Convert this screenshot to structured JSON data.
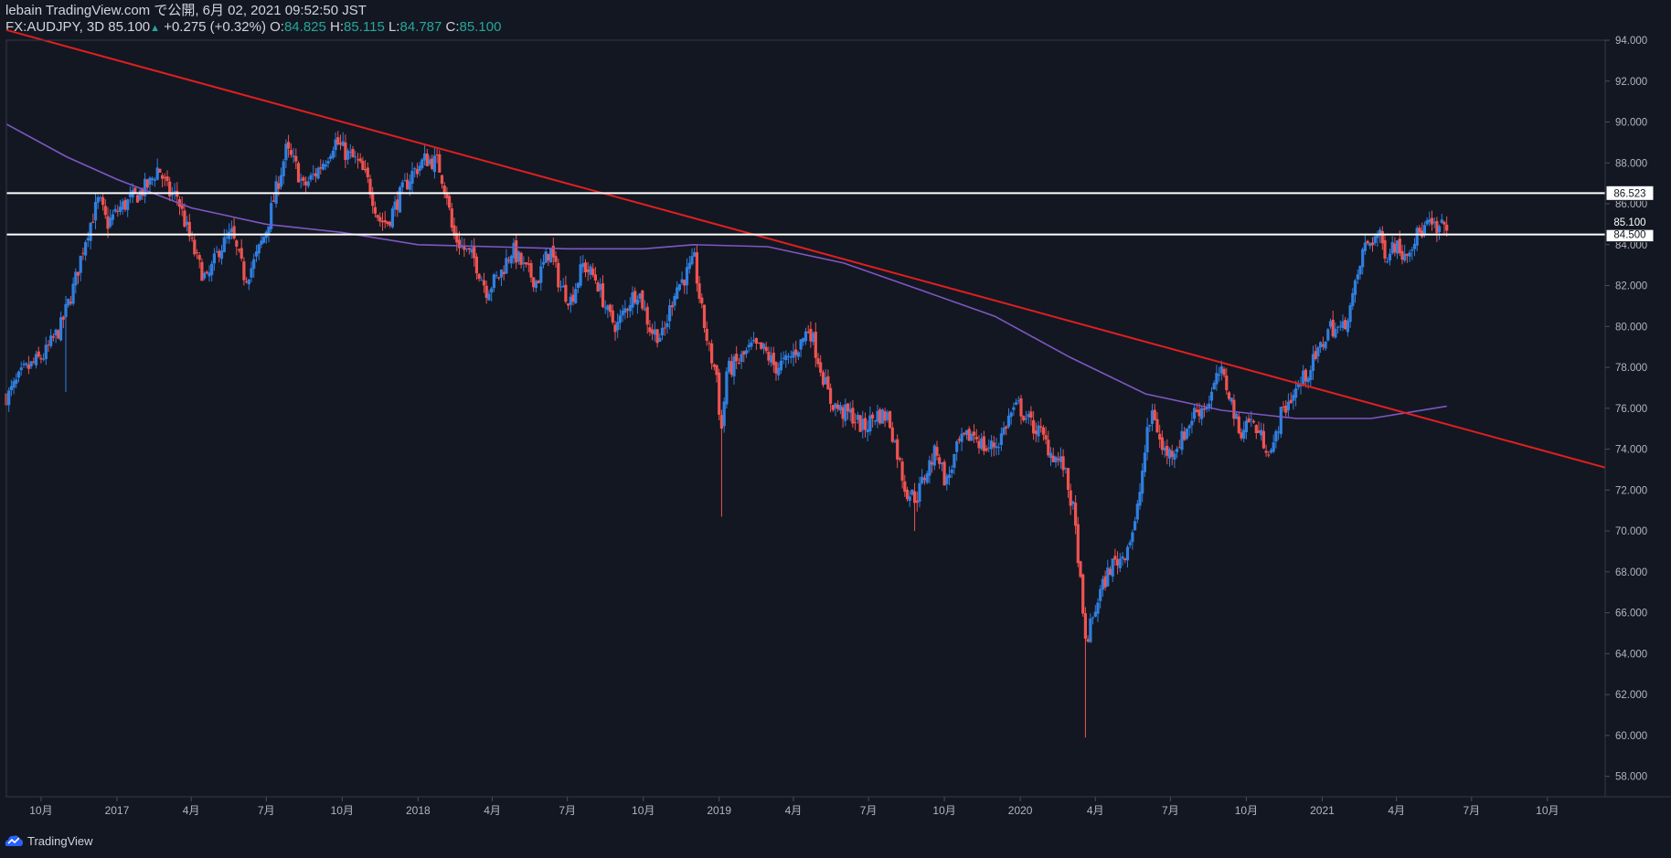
{
  "header": {
    "line1": "lebain TradingView.com で公開, 6月 02, 2021 09:52:50 JST",
    "symbol_info": "FX:AUDJPY, 3D 85.100",
    "change": "+0.275 (+0.32%)",
    "o_label": "O:",
    "o_value": "84.825",
    "h_label": "H:",
    "h_value": "85.115",
    "l_label": "L:",
    "l_value": "84.787",
    "c_label": "C:",
    "c_value": "85.100"
  },
  "footer": {
    "brand": "TradingView"
  },
  "colors": {
    "background": "#131722",
    "up": "#2f7fe0",
    "down": "#ef5350",
    "ma": "#7e57c2",
    "trendline": "#e01f1f",
    "hline": "#ffffff",
    "axis_text": "#b2b5be"
  },
  "chart_data": {
    "type": "candlestick",
    "symbol": "FX:AUDJPY",
    "interval": "3D",
    "ylim": [
      57,
      94
    ],
    "yticks": [
      58,
      60,
      62,
      64,
      66,
      68,
      70,
      72,
      74,
      76,
      78,
      80,
      82,
      84,
      86,
      88,
      90,
      92,
      94
    ],
    "xlim": [
      "2016-08-20",
      "2021-12-10"
    ],
    "xticks": [
      {
        "date": "2016-10-01",
        "label": "10月"
      },
      {
        "date": "2017-01-01",
        "label": "2017"
      },
      {
        "date": "2017-04-01",
        "label": "4月"
      },
      {
        "date": "2017-07-01",
        "label": "7月"
      },
      {
        "date": "2017-10-01",
        "label": "10月"
      },
      {
        "date": "2018-01-01",
        "label": "2018"
      },
      {
        "date": "2018-04-01",
        "label": "4月"
      },
      {
        "date": "2018-07-01",
        "label": "7月"
      },
      {
        "date": "2018-10-01",
        "label": "10月"
      },
      {
        "date": "2019-01-01",
        "label": "2019"
      },
      {
        "date": "2019-04-01",
        "label": "4月"
      },
      {
        "date": "2019-07-01",
        "label": "7月"
      },
      {
        "date": "2019-10-01",
        "label": "10月"
      },
      {
        "date": "2020-01-01",
        "label": "2020"
      },
      {
        "date": "2020-04-01",
        "label": "4月"
      },
      {
        "date": "2020-07-01",
        "label": "7月"
      },
      {
        "date": "2020-10-01",
        "label": "10月"
      },
      {
        "date": "2021-01-01",
        "label": "2021"
      },
      {
        "date": "2021-04-01",
        "label": "4月"
      },
      {
        "date": "2021-07-01",
        "label": "7月"
      },
      {
        "date": "2021-10-01",
        "label": "10月"
      }
    ],
    "price_path": [
      [
        "2016-08-22",
        76.6
      ],
      [
        "2016-09-10",
        77.8
      ],
      [
        "2016-10-05",
        78.6
      ],
      [
        "2016-10-25",
        80.0
      ],
      [
        "2016-11-10",
        82.0
      ],
      [
        "2016-11-25",
        84.5
      ],
      [
        "2016-12-10",
        86.2
      ],
      [
        "2016-12-20",
        85.0
      ],
      [
        "2017-01-05",
        85.8
      ],
      [
        "2017-01-25",
        86.4
      ],
      [
        "2017-02-10",
        87.0
      ],
      [
        "2017-02-20",
        87.8
      ],
      [
        "2017-03-05",
        86.5
      ],
      [
        "2017-03-15",
        86.4
      ],
      [
        "2017-03-25",
        85.0
      ],
      [
        "2017-04-10",
        83.0
      ],
      [
        "2017-04-20",
        82.2
      ],
      [
        "2017-05-05",
        83.8
      ],
      [
        "2017-05-20",
        84.5
      ],
      [
        "2017-06-05",
        82.4
      ],
      [
        "2017-06-15",
        83.0
      ],
      [
        "2017-06-30",
        84.6
      ],
      [
        "2017-07-12",
        86.5
      ],
      [
        "2017-07-25",
        88.6
      ],
      [
        "2017-08-05",
        87.9
      ],
      [
        "2017-08-15",
        86.8
      ],
      [
        "2017-08-30",
        87.5
      ],
      [
        "2017-09-12",
        88.3
      ],
      [
        "2017-09-22",
        89.1
      ],
      [
        "2017-10-05",
        88.5
      ],
      [
        "2017-10-20",
        88.0
      ],
      [
        "2017-11-02",
        87.0
      ],
      [
        "2017-11-15",
        85.2
      ],
      [
        "2017-11-25",
        85.1
      ],
      [
        "2017-12-10",
        86.4
      ],
      [
        "2017-12-25",
        87.5
      ],
      [
        "2018-01-10",
        88.2
      ],
      [
        "2018-01-25",
        88.0
      ],
      [
        "2018-02-05",
        86.5
      ],
      [
        "2018-02-12",
        84.5
      ],
      [
        "2018-02-25",
        83.8
      ],
      [
        "2018-03-10",
        83.3
      ],
      [
        "2018-03-25",
        81.8
      ],
      [
        "2018-04-10",
        82.5
      ],
      [
        "2018-04-25",
        83.8
      ],
      [
        "2018-05-10",
        82.8
      ],
      [
        "2018-05-25",
        82.2
      ],
      [
        "2018-06-10",
        83.8
      ],
      [
        "2018-06-22",
        82.0
      ],
      [
        "2018-07-05",
        81.3
      ],
      [
        "2018-07-20",
        83.0
      ],
      [
        "2018-08-05",
        82.3
      ],
      [
        "2018-08-20",
        80.5
      ],
      [
        "2018-08-30",
        80.0
      ],
      [
        "2018-09-15",
        81.3
      ],
      [
        "2018-09-25",
        81.8
      ],
      [
        "2018-10-10",
        79.8
      ],
      [
        "2018-10-25",
        79.5
      ],
      [
        "2018-11-08",
        81.8
      ],
      [
        "2018-11-20",
        82.4
      ],
      [
        "2018-12-02",
        83.2
      ],
      [
        "2018-12-10",
        80.9
      ],
      [
        "2018-12-20",
        78.8
      ],
      [
        "2018-12-30",
        77.5
      ],
      [
        "2019-01-03",
        74.5
      ],
      [
        "2019-01-10",
        77.8
      ],
      [
        "2019-01-25",
        78.3
      ],
      [
        "2019-02-10",
        79.0
      ],
      [
        "2019-02-25",
        78.8
      ],
      [
        "2019-03-10",
        78.0
      ],
      [
        "2019-03-25",
        78.3
      ],
      [
        "2019-04-10",
        79.2
      ],
      [
        "2019-04-20",
        80.0
      ],
      [
        "2019-05-02",
        78.3
      ],
      [
        "2019-05-15",
        76.4
      ],
      [
        "2019-05-30",
        75.8
      ],
      [
        "2019-06-10",
        75.7
      ],
      [
        "2019-06-25",
        75.0
      ],
      [
        "2019-07-10",
        75.7
      ],
      [
        "2019-07-25",
        75.6
      ],
      [
        "2019-08-05",
        73.8
      ],
      [
        "2019-08-15",
        72.0
      ],
      [
        "2019-08-28",
        71.6
      ],
      [
        "2019-09-10",
        73.0
      ],
      [
        "2019-09-22",
        74.0
      ],
      [
        "2019-10-03",
        72.3
      ],
      [
        "2019-10-18",
        74.2
      ],
      [
        "2019-11-05",
        74.8
      ],
      [
        "2019-11-20",
        74.0
      ],
      [
        "2019-12-05",
        74.3
      ],
      [
        "2019-12-20",
        75.7
      ],
      [
        "2019-12-30",
        76.1
      ],
      [
        "2020-01-12",
        75.3
      ],
      [
        "2020-01-25",
        74.8
      ],
      [
        "2020-02-08",
        73.8
      ],
      [
        "2020-02-22",
        73.2
      ],
      [
        "2020-03-05",
        71.0
      ],
      [
        "2020-03-12",
        68.5
      ],
      [
        "2020-03-19",
        64.5
      ],
      [
        "2020-03-24",
        65.0
      ],
      [
        "2020-04-05",
        66.8
      ],
      [
        "2020-04-20",
        68.3
      ],
      [
        "2020-05-05",
        68.8
      ],
      [
        "2020-05-20",
        70.4
      ],
      [
        "2020-06-02",
        74.5
      ],
      [
        "2020-06-10",
        76.0
      ],
      [
        "2020-06-20",
        74.0
      ],
      [
        "2020-06-30",
        73.8
      ],
      [
        "2020-07-15",
        74.5
      ],
      [
        "2020-07-30",
        75.8
      ],
      [
        "2020-08-15",
        76.2
      ],
      [
        "2020-08-30",
        77.8
      ],
      [
        "2020-09-10",
        76.8
      ],
      [
        "2020-09-22",
        74.8
      ],
      [
        "2020-10-05",
        75.5
      ],
      [
        "2020-10-20",
        74.5
      ],
      [
        "2020-11-02",
        73.8
      ],
      [
        "2020-11-10",
        75.5
      ],
      [
        "2020-11-25",
        76.6
      ],
      [
        "2020-12-10",
        77.5
      ],
      [
        "2020-12-25",
        78.5
      ],
      [
        "2021-01-10",
        80.0
      ],
      [
        "2021-01-25",
        79.8
      ],
      [
        "2021-02-08",
        81.5
      ],
      [
        "2021-02-20",
        83.8
      ],
      [
        "2021-03-01",
        84.2
      ],
      [
        "2021-03-10",
        84.5
      ],
      [
        "2021-03-20",
        83.5
      ],
      [
        "2021-03-28",
        84.1
      ],
      [
        "2021-04-10",
        83.6
      ],
      [
        "2021-04-25",
        84.4
      ],
      [
        "2021-05-10",
        85.0
      ],
      [
        "2021-05-20",
        84.6
      ],
      [
        "2021-06-01",
        85.1
      ]
    ],
    "wick_spikes": [
      {
        "date": "2019-01-03",
        "low": 70.7
      },
      {
        "date": "2020-03-19",
        "low": 59.9
      },
      {
        "date": "2016-11-01",
        "low": 76.8
      },
      {
        "date": "2019-08-25",
        "low": 70.0
      }
    ],
    "moving_average": {
      "points": [
        [
          "2016-08-20",
          89.9
        ],
        [
          "2016-11-01",
          88.3
        ],
        [
          "2017-01-01",
          87.2
        ],
        [
          "2017-04-01",
          85.8
        ],
        [
          "2017-07-01",
          85.0
        ],
        [
          "2017-10-01",
          84.6
        ],
        [
          "2018-01-01",
          84.0
        ],
        [
          "2018-04-01",
          83.9
        ],
        [
          "2018-07-01",
          83.8
        ],
        [
          "2018-10-01",
          83.8
        ],
        [
          "2018-12-01",
          84.0
        ],
        [
          "2019-03-01",
          83.9
        ],
        [
          "2019-06-01",
          83.1
        ],
        [
          "2019-09-01",
          81.8
        ],
        [
          "2019-12-01",
          80.5
        ],
        [
          "2020-03-01",
          78.5
        ],
        [
          "2020-06-01",
          76.7
        ],
        [
          "2020-09-01",
          75.9
        ],
        [
          "2020-12-01",
          75.5
        ],
        [
          "2021-03-01",
          75.5
        ],
        [
          "2021-06-01",
          76.1
        ]
      ]
    },
    "trendline": {
      "start": [
        "2016-08-20",
        94.5
      ],
      "end": [
        "2021-12-10",
        73.1
      ]
    },
    "horizontal_levels": [
      {
        "value": 86.523,
        "label": "86.523"
      },
      {
        "value": 84.5,
        "label": "84.500"
      }
    ],
    "last_price": {
      "value": 85.1,
      "label": "85.100"
    }
  }
}
